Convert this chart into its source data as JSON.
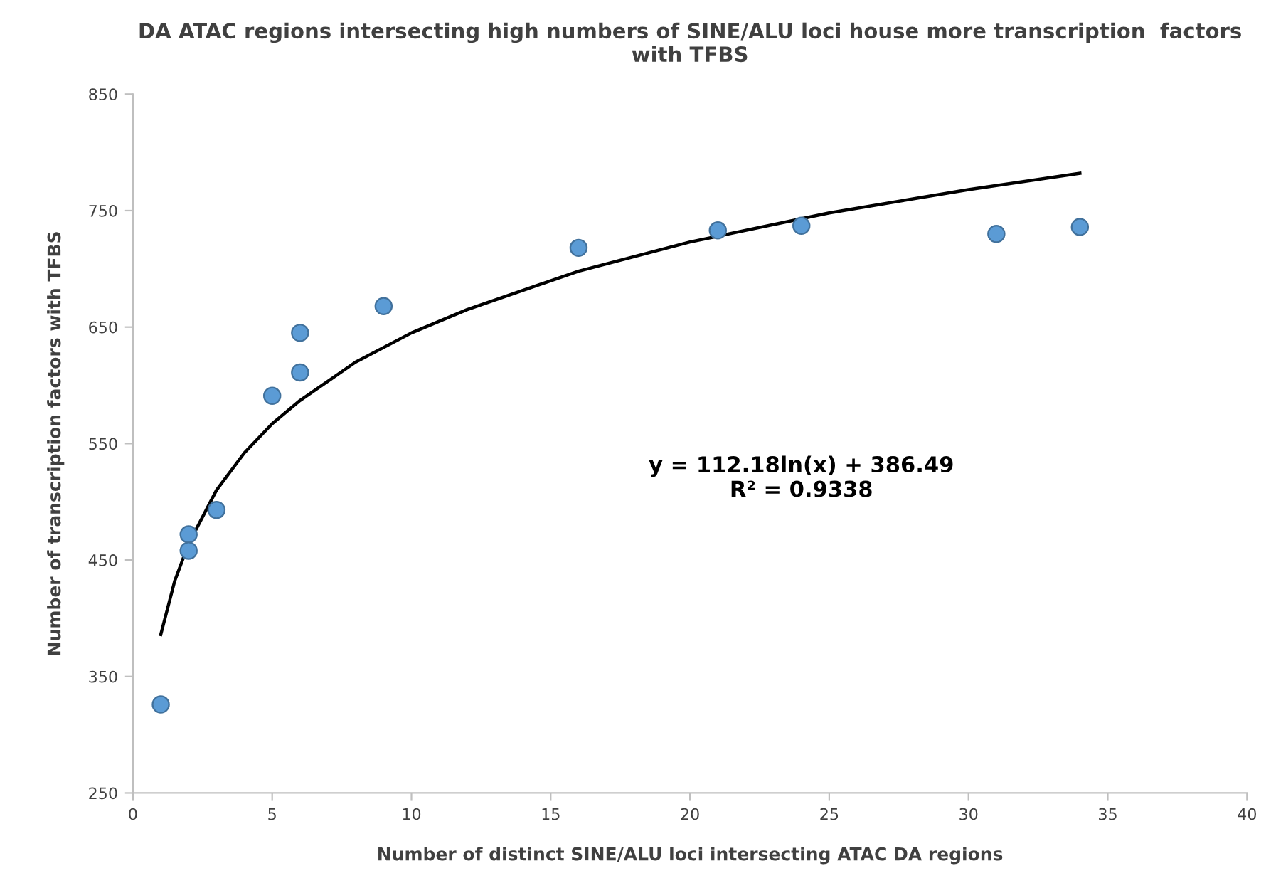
{
  "chart_data": {
    "type": "scatter",
    "title": "DA ATAC regions intersecting high numbers of SINE/ALU loci house more transcription  factors with TFBS",
    "xlabel": "Number of distinct SINE/ALU loci intersecting ATAC DA regions",
    "ylabel": "Number of transcription factors with TFBS",
    "series": [
      {
        "color": "#5b9bd5",
        "marker": "circle",
        "x": [
          1,
          2,
          2,
          3,
          5,
          6,
          6,
          9,
          16,
          21,
          24,
          31,
          34
        ],
        "values": [
          326,
          472,
          458,
          493,
          591,
          611,
          645,
          668,
          718,
          733,
          737,
          730,
          736
        ]
      },
      {
        "type": "line",
        "color": "#000000",
        "marker": "none",
        "line_style": "solid",
        "x": [
          1,
          1.5,
          2,
          3,
          4,
          5,
          6,
          8,
          10,
          12,
          16,
          20,
          25,
          30,
          34
        ],
        "values": [
          386,
          432,
          464,
          510,
          542,
          567,
          587,
          620,
          645,
          665,
          698,
          723,
          748,
          768,
          782
        ]
      }
    ],
    "annotations": [
      "y = 112.18ln(x) + 386.49\nR² = 0.9338"
    ],
    "xlim": [
      0,
      40
    ],
    "xticks": [
      0,
      5,
      10,
      15,
      20,
      25,
      30,
      35,
      40
    ],
    "ylim": [
      250,
      850
    ],
    "yticks": [
      250,
      350,
      450,
      550,
      650,
      750,
      850
    ],
    "grid": false
  }
}
